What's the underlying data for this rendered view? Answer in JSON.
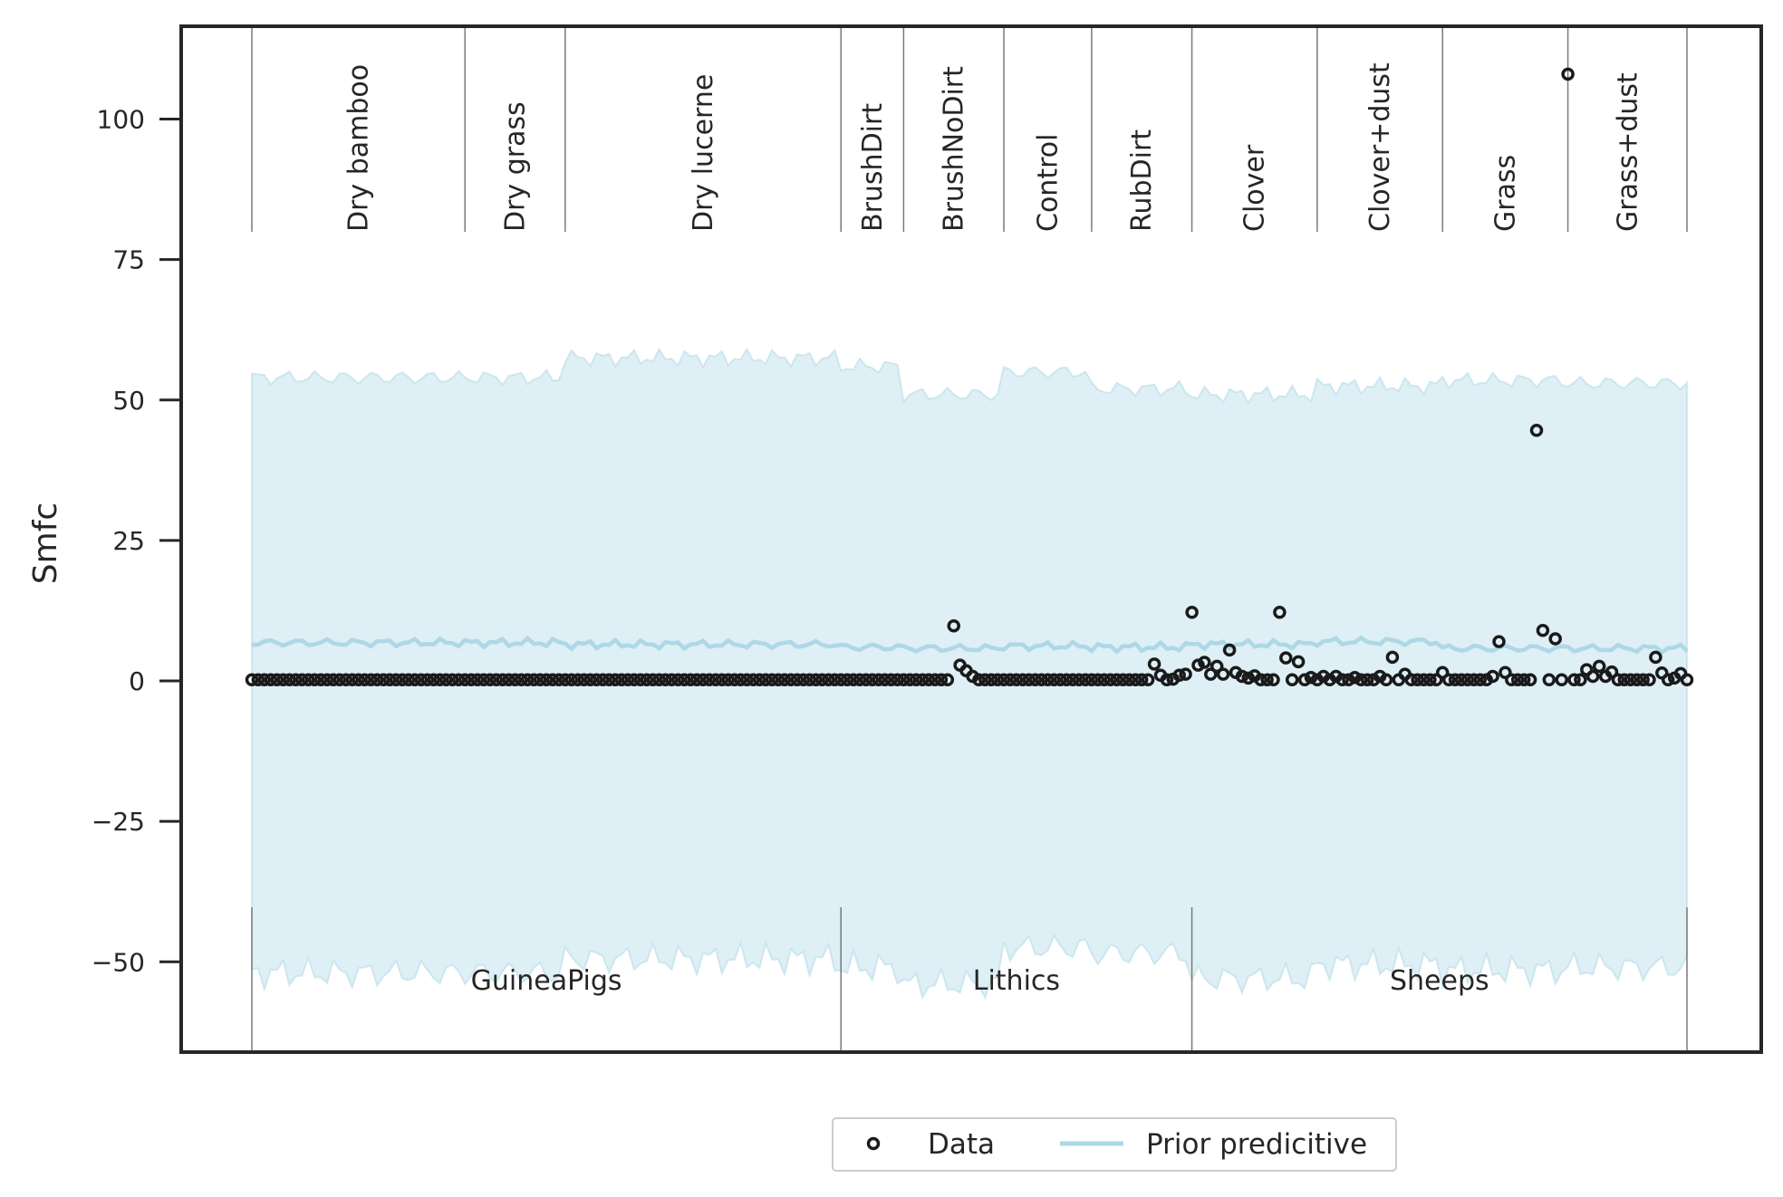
{
  "chart_data": {
    "type": "scatter",
    "ylabel": "Smfc",
    "xlabel": "",
    "ylim": [
      -65,
      117
    ],
    "yticks": [
      -50,
      -25,
      0,
      25,
      50,
      75,
      100
    ],
    "ytick_labels": [
      "−50",
      "−25",
      "0",
      "25",
      "50",
      "75",
      "100"
    ],
    "n_points": 230,
    "categories": [
      {
        "label": "Dry bamboo",
        "start": 0,
        "end": 34
      },
      {
        "label": "Dry grass",
        "start": 34,
        "end": 50
      },
      {
        "label": "Dry lucerne",
        "start": 50,
        "end": 94
      },
      {
        "label": "BrushDirt",
        "start": 94,
        "end": 104
      },
      {
        "label": "BrushNoDirt",
        "start": 104,
        "end": 120
      },
      {
        "label": "Control",
        "start": 120,
        "end": 134
      },
      {
        "label": "RubDirt",
        "start": 134,
        "end": 150
      },
      {
        "label": "Clover",
        "start": 150,
        "end": 170
      },
      {
        "label": "Clover+dust",
        "start": 170,
        "end": 190
      },
      {
        "label": "Grass",
        "start": 190,
        "end": 210
      },
      {
        "label": "Grass+dust",
        "start": 210,
        "end": 229
      }
    ],
    "groups": [
      {
        "label": "GuineaPigs",
        "start": 0,
        "end": 94
      },
      {
        "label": "Lithics",
        "start": 94,
        "end": 150
      },
      {
        "label": "Sheeps",
        "start": 150,
        "end": 229
      }
    ],
    "series": [
      {
        "name": "Data",
        "kind": "points",
        "default_value": 0.2,
        "notable_points": [
          {
            "x": 112,
            "y": 9.8
          },
          {
            "x": 113,
            "y": 2.8
          },
          {
            "x": 114,
            "y": 1.8
          },
          {
            "x": 115,
            "y": 0.8
          },
          {
            "x": 144,
            "y": 3.0
          },
          {
            "x": 145,
            "y": 1.0
          },
          {
            "x": 147,
            "y": 0.3
          },
          {
            "x": 148,
            "y": 1.0
          },
          {
            "x": 149,
            "y": 1.2
          },
          {
            "x": 150,
            "y": 12.2
          },
          {
            "x": 151,
            "y": 2.8
          },
          {
            "x": 152,
            "y": 3.3
          },
          {
            "x": 153,
            "y": 1.2
          },
          {
            "x": 154,
            "y": 2.6
          },
          {
            "x": 155,
            "y": 1.2
          },
          {
            "x": 156,
            "y": 5.5
          },
          {
            "x": 157,
            "y": 1.5
          },
          {
            "x": 158,
            "y": 0.8
          },
          {
            "x": 159,
            "y": 0.5
          },
          {
            "x": 160,
            "y": 0.9
          },
          {
            "x": 164,
            "y": 12.2
          },
          {
            "x": 165,
            "y": 4.1
          },
          {
            "x": 167,
            "y": 3.4
          },
          {
            "x": 169,
            "y": 0.6
          },
          {
            "x": 171,
            "y": 0.8
          },
          {
            "x": 173,
            "y": 0.8
          },
          {
            "x": 176,
            "y": 0.6
          },
          {
            "x": 180,
            "y": 0.8
          },
          {
            "x": 182,
            "y": 4.2
          },
          {
            "x": 184,
            "y": 1.2
          },
          {
            "x": 190,
            "y": 1.5
          },
          {
            "x": 198,
            "y": 0.8
          },
          {
            "x": 199,
            "y": 7.0
          },
          {
            "x": 200,
            "y": 1.5
          },
          {
            "x": 205,
            "y": 44.6
          },
          {
            "x": 206,
            "y": 9.0
          },
          {
            "x": 208,
            "y": 7.5
          },
          {
            "x": 210,
            "y": 108.0
          },
          {
            "x": 213,
            "y": 2.0
          },
          {
            "x": 214,
            "y": 0.8
          },
          {
            "x": 215,
            "y": 2.6
          },
          {
            "x": 216,
            "y": 0.8
          },
          {
            "x": 217,
            "y": 1.6
          },
          {
            "x": 224,
            "y": 4.2
          },
          {
            "x": 225,
            "y": 1.4
          },
          {
            "x": 227,
            "y": 0.5
          },
          {
            "x": 228,
            "y": 1.3
          }
        ]
      },
      {
        "name": "Prior predicitive",
        "kind": "band",
        "color": "#add8e6",
        "segments": [
          {
            "start": 0,
            "end": 50,
            "center": 6.8,
            "upper": 54.0,
            "lower": -52.0
          },
          {
            "start": 50,
            "end": 94,
            "center": 6.5,
            "upper": 57.5,
            "lower": -49.5
          },
          {
            "start": 94,
            "end": 104,
            "center": 6.0,
            "upper": 56.0,
            "lower": -51.0
          },
          {
            "start": 104,
            "end": 120,
            "center": 5.8,
            "upper": 51.0,
            "lower": -54.0
          },
          {
            "start": 120,
            "end": 134,
            "center": 6.2,
            "upper": 55.0,
            "lower": -47.5
          },
          {
            "start": 134,
            "end": 150,
            "center": 6.0,
            "upper": 52.0,
            "lower": -48.5
          },
          {
            "start": 150,
            "end": 170,
            "center": 6.5,
            "upper": 51.0,
            "lower": -53.0
          },
          {
            "start": 170,
            "end": 190,
            "center": 7.0,
            "upper": 52.5,
            "lower": -50.5
          },
          {
            "start": 190,
            "end": 210,
            "center": 5.8,
            "upper": 53.5,
            "lower": -51.5
          },
          {
            "start": 210,
            "end": 229,
            "center": 5.8,
            "upper": 53.0,
            "lower": -51.0
          }
        ]
      }
    ],
    "legend": {
      "placement": "bottom-center",
      "entries": [
        "Data",
        "Prior predicitive"
      ]
    }
  }
}
